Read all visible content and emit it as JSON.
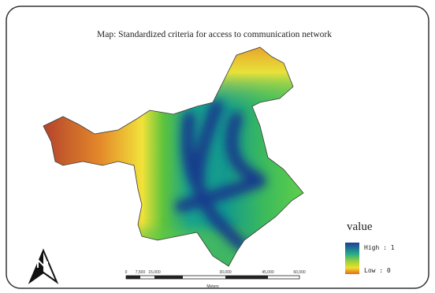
{
  "title": "Map: Standardized criteria for access to communication network",
  "legend": {
    "title": "value",
    "high": "High : 1",
    "low": "Low : 0"
  },
  "scale_bar": {
    "labels": [
      "0",
      "7,500",
      "15,000",
      "30,000",
      "45,000",
      "60,000"
    ],
    "unit": "Meters"
  }
}
